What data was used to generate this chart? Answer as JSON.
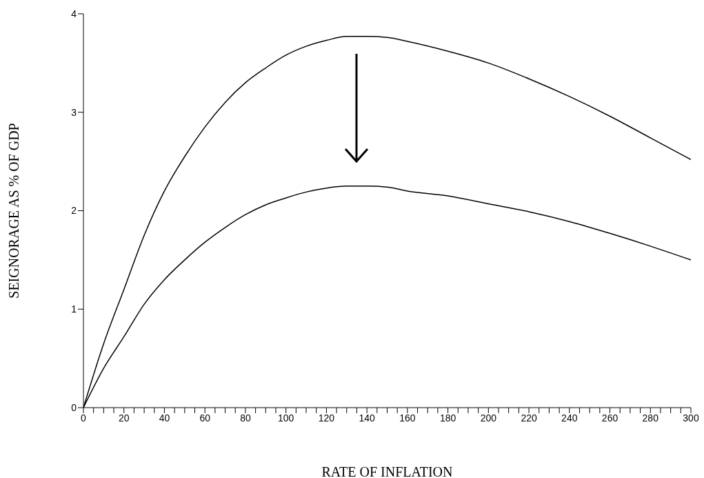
{
  "chart_data": {
    "type": "line",
    "xlabel": "RATE OF INFLATION",
    "ylabel": "SEIGNORAGE AS % OF GDP",
    "x": [
      0,
      10,
      20,
      30,
      40,
      50,
      60,
      70,
      80,
      90,
      100,
      110,
      120,
      130,
      140,
      150,
      160,
      180,
      200,
      220,
      240,
      260,
      280,
      300
    ],
    "series": [
      {
        "color": "#000000",
        "values": [
          0,
          0.65,
          1.2,
          1.75,
          2.2,
          2.55,
          2.85,
          3.1,
          3.3,
          3.45,
          3.58,
          3.67,
          3.73,
          3.77,
          3.77,
          3.76,
          3.72,
          3.62,
          3.5,
          3.34,
          3.16,
          2.96,
          2.74,
          2.52
        ]
      },
      {
        "color": "#000000",
        "values": [
          0,
          0.4,
          0.72,
          1.05,
          1.3,
          1.5,
          1.68,
          1.83,
          1.96,
          2.06,
          2.13,
          2.19,
          2.23,
          2.25,
          2.25,
          2.24,
          2.2,
          2.15,
          2.07,
          1.99,
          1.89,
          1.77,
          1.64,
          1.5
        ]
      }
    ],
    "xlim": [
      0,
      300
    ],
    "xticks": [
      0,
      {
        "value": 5,
        "label": null
      },
      {
        "value": 10,
        "label": null
      },
      {
        "value": 15,
        "label": null
      },
      20,
      {
        "value": 25,
        "label": null
      },
      {
        "value": 30,
        "label": null
      },
      {
        "value": 35,
        "label": null
      },
      40,
      {
        "value": 45,
        "label": null
      },
      {
        "value": 50,
        "label": null
      },
      {
        "value": 55,
        "label": null
      },
      60,
      {
        "value": 65,
        "label": null
      },
      {
        "value": 70,
        "label": null
      },
      {
        "value": 75,
        "label": null
      },
      80,
      {
        "value": 85,
        "label": null
      },
      {
        "value": 90,
        "label": null
      },
      {
        "value": 95,
        "label": null
      },
      100,
      {
        "value": 105,
        "label": null
      },
      {
        "value": 110,
        "label": null
      },
      {
        "value": 115,
        "label": null
      },
      120,
      {
        "value": 125,
        "label": null
      },
      {
        "value": 130,
        "label": null
      },
      {
        "value": 135,
        "label": null
      },
      140,
      {
        "value": 145,
        "label": null
      },
      {
        "value": 150,
        "label": null
      },
      {
        "value": 155,
        "label": null
      },
      160,
      {
        "value": 165,
        "label": null
      },
      {
        "value": 170,
        "label": null
      },
      {
        "value": 175,
        "label": null
      },
      180,
      {
        "value": 185,
        "label": null
      },
      {
        "value": 190,
        "label": null
      },
      {
        "value": 195,
        "label": null
      },
      200,
      {
        "value": 205,
        "label": null
      },
      {
        "value": 210,
        "label": null
      },
      {
        "value": 215,
        "label": null
      },
      220,
      {
        "value": 225,
        "label": null
      },
      {
        "value": 230,
        "label": null
      },
      {
        "value": 235,
        "label": null
      },
      240,
      {
        "value": 245,
        "label": null
      },
      {
        "value": 250,
        "label": null
      },
      {
        "value": 255,
        "label": null
      },
      260,
      {
        "value": 265,
        "label": null
      },
      {
        "value": 270,
        "label": null
      },
      {
        "value": 275,
        "label": null
      },
      280,
      {
        "value": 285,
        "label": null
      },
      {
        "value": 290,
        "label": null
      },
      {
        "value": 295,
        "label": null
      },
      300
    ],
    "ylim": [
      0,
      4
    ],
    "yticks": [
      0,
      1,
      2,
      3,
      4
    ],
    "grid": false,
    "legend": false,
    "marker": "none",
    "line_style": "solid"
  }
}
